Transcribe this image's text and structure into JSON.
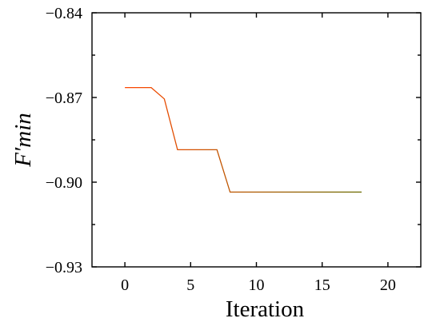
{
  "chart_data": {
    "type": "line",
    "title": "",
    "xlabel": "Iteration",
    "ylabel": "F′min",
    "xlim": [
      -2.5,
      22.5
    ],
    "ylim": [
      -0.93,
      -0.84
    ],
    "xticks": [
      0,
      5,
      10,
      15,
      20
    ],
    "xtick_labels": [
      "0",
      "5",
      "10",
      "15",
      "20"
    ],
    "yticks": [
      -0.93,
      -0.9,
      -0.87,
      -0.84
    ],
    "ytick_labels": [
      "−0.93",
      "−0.90",
      "−0.87",
      "−0.84"
    ],
    "grid": false,
    "series": [
      {
        "x": [
          0,
          1,
          2,
          3,
          4,
          5,
          6,
          7,
          8,
          9,
          10,
          11,
          12,
          13,
          14,
          15,
          16,
          17,
          18
        ],
        "y": [
          -0.8665,
          -0.8665,
          -0.8665,
          -0.8705,
          -0.8885,
          -0.8885,
          -0.8885,
          -0.8885,
          -0.9035,
          -0.9035,
          -0.9035,
          -0.9035,
          -0.9035,
          -0.9035,
          -0.9035,
          -0.9035,
          -0.9035,
          -0.9035,
          -0.9035
        ],
        "color_start": "#ff4500",
        "color_end": "#6b6b00"
      }
    ]
  }
}
